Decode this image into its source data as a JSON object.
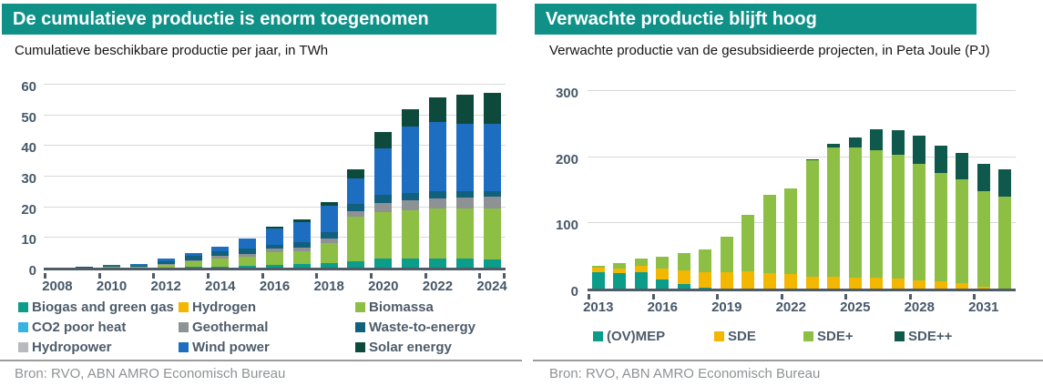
{
  "left_panel": {
    "title": "De cumulatieve productie is enorm toegenomen",
    "subtitle": "Cumulatieve beschikbare productie per jaar, in TWh",
    "source": "Bron: RVO, ABN AMRO Economisch Bureau"
  },
  "right_panel": {
    "title": "Verwachte productie blijft hoog",
    "subtitle": "Verwachte productie van de gesubsidieerde projecten, in Peta Joule (PJ)",
    "source": "Bron: RVO, ABN AMRO Economisch Bureau"
  },
  "colors": {
    "title_bar_bg": "#0f9188",
    "title_text": "#ffffff",
    "axis_text": "#46586a",
    "legend_text": "#4d5c6b",
    "gridline": "#d9d9d9",
    "axis_line": "#4f5b66",
    "divider": "#9b9b9b",
    "source_text": "#8f9295"
  },
  "chart_data": [
    {
      "type": "bar",
      "stacked": true,
      "title": "De cumulatieve productie is enorm toegenomen",
      "ylabel": "TWh",
      "xlabel": "",
      "grid": true,
      "ylim": [
        0,
        60
      ],
      "y_ticks": [
        0,
        10,
        20,
        30,
        40,
        50,
        60
      ],
      "categories": [
        2008,
        2009,
        2010,
        2011,
        2012,
        2013,
        2014,
        2015,
        2016,
        2017,
        2018,
        2019,
        2020,
        2021,
        2022,
        2023,
        2024
      ],
      "x_tick_labels": [
        "2008",
        "2010",
        "2012",
        "2014",
        "2016",
        "2018",
        "2020",
        "2022",
        "2024"
      ],
      "series": [
        {
          "name": "Biogas and green gas",
          "color": "#0c9c8a",
          "values": [
            0.0,
            0.1,
            0.1,
            0.1,
            0.1,
            0.2,
            0.3,
            0.6,
            1.0,
            1.2,
            1.4,
            2.2,
            3.0,
            3.0,
            3.0,
            3.0,
            2.8
          ]
        },
        {
          "name": "Hydrogen",
          "color": "#f3b700",
          "values": [
            0,
            0,
            0,
            0,
            0,
            0,
            0,
            0,
            0,
            0,
            0,
            0,
            0,
            0,
            0,
            0,
            0
          ]
        },
        {
          "name": "Biomassa",
          "color": "#8dbf44",
          "values": [
            0.1,
            0.1,
            0.2,
            0.3,
            1.0,
            2.0,
            2.7,
            3.0,
            4.1,
            4.2,
            6.7,
            14.3,
            15.2,
            15.8,
            16.2,
            16.3,
            16.5
          ]
        },
        {
          "name": "CO2 poor heat",
          "color": "#36b3e4",
          "values": [
            0,
            0,
            0,
            0,
            0,
            0,
            0,
            0,
            0,
            0,
            0.1,
            0.1,
            0.1,
            0.1,
            0.1,
            0.1,
            0.1
          ]
        },
        {
          "name": "Geothermal",
          "color": "#8e9295",
          "values": [
            0,
            0,
            0,
            0.1,
            0.2,
            0.3,
            0.8,
            1.0,
            1.0,
            1.2,
            1.5,
            1.8,
            3.0,
            3.2,
            3.5,
            3.7,
            3.8
          ]
        },
        {
          "name": "Hydropower",
          "color": "#b7babc",
          "values": [
            0.1,
            0.1,
            0.1,
            0.1,
            0.1,
            0.1,
            0.1,
            0.1,
            0.1,
            0.1,
            0.1,
            0.2,
            0.1,
            0.1,
            0.1,
            0.1,
            0.1
          ]
        },
        {
          "name": "Waste-to-energy",
          "color": "#11607d",
          "values": [
            0.1,
            0.2,
            0.3,
            0.4,
            0.9,
            1.4,
            1.7,
            1.7,
            1.3,
            1.8,
            2.0,
            2.4,
            2.6,
            2.5,
            2.2,
            2.0,
            2.0
          ]
        },
        {
          "name": "Wind power",
          "color": "#1d6ec0",
          "values": [
            0.1,
            0.2,
            0.3,
            0.6,
            0.8,
            1.0,
            1.4,
            3.2,
            5.3,
            6.6,
            8.5,
            8.3,
            15.2,
            21.5,
            22.5,
            22.0,
            21.9
          ]
        },
        {
          "name": "Solar energy",
          "color": "#0e4a3c",
          "values": [
            0,
            0,
            0,
            0,
            0,
            0,
            0,
            0,
            0.6,
            0.7,
            1.3,
            3.0,
            5.2,
            5.6,
            8.3,
            9.5,
            9.9
          ]
        }
      ],
      "legend_order": [
        "Biogas and green gas",
        "Hydrogen",
        "Biomassa",
        "CO2 poor heat",
        "Geothermal",
        "Waste-to-energy",
        "Hydropower",
        "Wind power",
        "Solar energy"
      ],
      "legend_position": "bottom-grid-3col"
    },
    {
      "type": "bar",
      "stacked": true,
      "title": "Verwachte productie blijft hoog",
      "ylabel": "PJ",
      "xlabel": "",
      "grid": true,
      "ylim": [
        0,
        300
      ],
      "y_ticks": [
        0,
        100,
        200,
        300
      ],
      "categories": [
        2013,
        2014,
        2015,
        2016,
        2017,
        2018,
        2019,
        2020,
        2021,
        2022,
        2023,
        2024,
        2025,
        2026,
        2027,
        2028,
        2029,
        2030,
        2031,
        2032
      ],
      "x_tick_labels": [
        "2013",
        "2016",
        "2019",
        "2022",
        "2025",
        "2028",
        "2031"
      ],
      "series": [
        {
          "name": "(OV)MEP",
          "color": "#0c9c8a",
          "values": [
            25,
            24,
            25,
            14,
            7,
            2,
            0,
            0,
            0,
            0,
            0,
            0,
            0,
            0,
            0,
            0,
            0,
            0,
            0,
            0
          ]
        },
        {
          "name": "SDE",
          "color": "#f3b700",
          "values": [
            7,
            6,
            10,
            16,
            21,
            23,
            25,
            26,
            23,
            22,
            18,
            18,
            17,
            16,
            15,
            12,
            11,
            8,
            3,
            0
          ]
        },
        {
          "name": "SDE+",
          "color": "#8dbf44",
          "values": [
            3,
            8,
            10,
            18,
            26,
            34,
            53,
            86,
            119,
            129,
            176,
            196,
            196,
            193,
            187,
            177,
            164,
            157,
            144,
            139
          ]
        },
        {
          "name": "SDE++",
          "color": "#0f594c",
          "values": [
            0,
            0,
            0,
            0,
            0,
            0,
            0,
            0,
            0,
            0,
            2,
            5,
            16,
            32,
            38,
            42,
            41,
            40,
            41,
            41
          ]
        }
      ],
      "legend_order": [
        "(OV)MEP",
        "SDE",
        "SDE+",
        "SDE++"
      ],
      "legend_position": "bottom-row"
    }
  ]
}
